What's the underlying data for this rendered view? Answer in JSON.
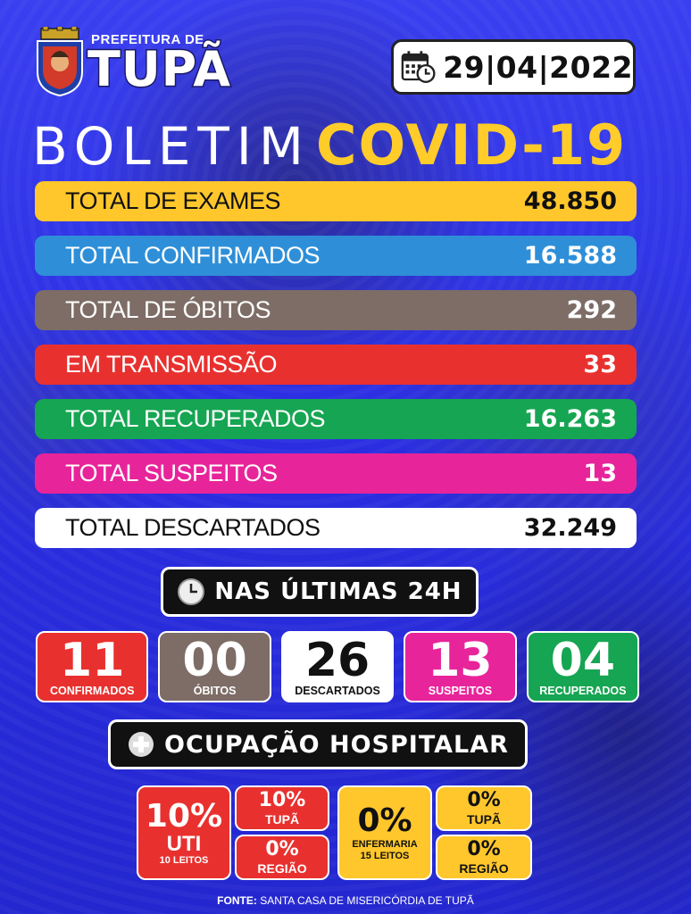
{
  "header": {
    "prefeitura": "PREFEITURA DE",
    "city": "TUPÃ",
    "date": "29|04|2022",
    "title_left": "BOLETIM",
    "title_right": "COVID-19"
  },
  "totals": [
    {
      "label": "TOTAL DE EXAMES",
      "value": "48.850",
      "bg": "#ffc72c",
      "color": "#111111"
    },
    {
      "label": "TOTAL CONFIRMADOS",
      "value": "16.588",
      "bg": "#2e8fd8",
      "color": "#ffffff"
    },
    {
      "label": "TOTAL DE ÓBITOS",
      "value": "292",
      "bg": "#7d6d66",
      "color": "#ffffff"
    },
    {
      "label": "EM TRANSMISSÃO",
      "value": "33",
      "bg": "#e8312f",
      "color": "#ffffff"
    },
    {
      "label": "TOTAL RECUPERADOS",
      "value": "16.263",
      "bg": "#16a552",
      "color": "#ffffff"
    },
    {
      "label": "TOTAL SUSPEITOS",
      "value": "13",
      "bg": "#e8249a",
      "color": "#ffffff"
    },
    {
      "label": "TOTAL DESCARTADOS",
      "value": "32.249",
      "bg": "#ffffff",
      "color": "#111111"
    }
  ],
  "last24": {
    "title": "NAS ÚLTIMAS 24H",
    "icon": "clock-icon",
    "items": [
      {
        "number": "11",
        "caption": "CONFIRMADOS",
        "bg": "#e8312f",
        "color": "#ffffff"
      },
      {
        "number": "00",
        "caption": "ÓBITOS",
        "bg": "#7d6d66",
        "color": "#ffffff"
      },
      {
        "number": "26",
        "caption": "DESCARTADOS",
        "bg": "#ffffff",
        "color": "#111111"
      },
      {
        "number": "13",
        "caption": "SUSPEITOS",
        "bg": "#e8249a",
        "color": "#ffffff"
      },
      {
        "number": "04",
        "caption": "RECUPERADOS",
        "bg": "#16a552",
        "color": "#ffffff"
      }
    ]
  },
  "hospital": {
    "title": "OCUPAÇÃO HOSPITALAR",
    "icon": "plus-icon",
    "uti": {
      "pct": "10%",
      "label": "UTI",
      "beds": "10 LEITOS",
      "tupa_pct": "10%",
      "tupa_label": "TUPÃ",
      "regiao_pct": "0%",
      "regiao_label": "REGIÃO",
      "color": "#e8312f"
    },
    "enfermaria": {
      "pct": "0%",
      "label": "ENFERMARIA",
      "beds": "15 LEITOS",
      "tupa_pct": "0%",
      "tupa_label": "TUPÃ",
      "regiao_pct": "0%",
      "regiao_label": "REGIÃO",
      "color": "#ffc72c"
    }
  },
  "footer": {
    "source_label": "FONTE:",
    "source": "SANTA CASA DE MISERICÓRDIA DE TUPÃ"
  }
}
